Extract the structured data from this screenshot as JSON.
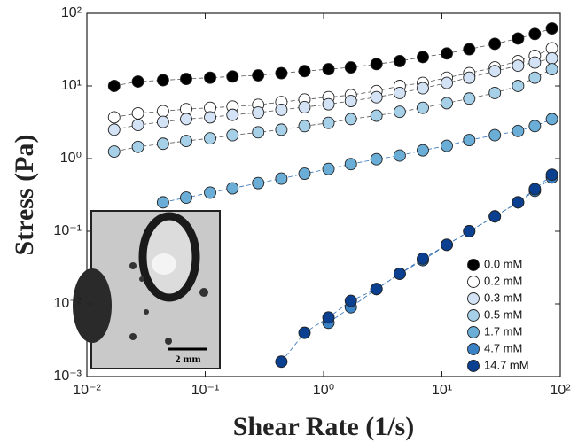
{
  "chart_data": {
    "type": "scatter",
    "x_label": "Shear Rate (1/s)",
    "y_label": "Stress (Pa)",
    "log_x": true,
    "log_y": true,
    "xlim": [
      0.01,
      100
    ],
    "ylim": [
      0.001,
      100
    ],
    "xticks": [
      {
        "value": 0.01,
        "label": "10⁻²"
      },
      {
        "value": 0.1,
        "label": "10⁻¹"
      },
      {
        "value": 1,
        "label": "10⁰"
      },
      {
        "value": 10,
        "label": "10¹"
      },
      {
        "value": 100,
        "label": "10²"
      }
    ],
    "yticks": [
      {
        "value": 0.001,
        "label": "10⁻³"
      },
      {
        "value": 0.01,
        "label": "10⁻²"
      },
      {
        "value": 0.1,
        "label": "10⁻¹"
      },
      {
        "value": 1,
        "label": "10⁰"
      },
      {
        "value": 10,
        "label": "10¹"
      },
      {
        "value": 100,
        "label": "10²"
      }
    ],
    "legend": "lower right",
    "fit_lines": true,
    "x": [
      0.017,
      0.027,
      0.044,
      0.069,
      0.11,
      0.17,
      0.28,
      0.44,
      0.69,
      1.1,
      1.7,
      2.8,
      4.4,
      6.9,
      11,
      17,
      28,
      44,
      61,
      85
    ],
    "series": [
      {
        "name": "0.0 mM",
        "color": "#000000",
        "values": [
          10,
          11.5,
          12,
          12.5,
          13,
          13.5,
          14,
          15,
          16,
          17,
          18,
          20,
          22,
          25,
          28,
          32,
          38,
          45,
          52,
          62
        ]
      },
      {
        "name": "0.2 mM",
        "color": "#ffffff",
        "values": [
          3.7,
          4.2,
          4.5,
          4.8,
          5,
          5.2,
          5.5,
          6,
          6.5,
          7,
          7.5,
          8.5,
          10,
          11,
          13,
          15,
          18,
          22,
          26,
          33
        ]
      },
      {
        "name": "0.3 mM",
        "color": "#d3e2f4",
        "values": [
          2.5,
          2.9,
          3.2,
          3.5,
          3.7,
          4,
          4.3,
          4.7,
          5.1,
          5.6,
          6.2,
          7,
          8,
          9.3,
          11,
          13,
          16,
          19,
          21,
          24
        ]
      },
      {
        "name": "0.5 mM",
        "color": "#a6d0e8",
        "values": [
          1.25,
          1.45,
          1.6,
          1.75,
          1.9,
          2.1,
          2.3,
          2.5,
          2.8,
          3.1,
          3.5,
          3.9,
          4.4,
          5,
          5.8,
          6.7,
          8,
          10,
          13,
          17
        ]
      },
      {
        "name": "1.7 mM",
        "color": "#6aaed8",
        "values": [
          null,
          null,
          0.25,
          0.29,
          0.34,
          0.39,
          0.46,
          0.53,
          0.62,
          0.72,
          0.84,
          0.98,
          1.1,
          1.3,
          1.5,
          1.8,
          2.1,
          2.4,
          2.8,
          3.5
        ]
      },
      {
        "name": "4.7 mM",
        "color": "#3a82c4",
        "values": [
          null,
          null,
          null,
          null,
          null,
          null,
          null,
          null,
          null,
          0.0055,
          0.009,
          0.016,
          0.026,
          0.04,
          0.065,
          0.1,
          0.16,
          0.25,
          0.36,
          0.55
        ]
      },
      {
        "name": "14.7 mM",
        "color": "#0b3f8f",
        "values": [
          null,
          null,
          null,
          null,
          null,
          null,
          null,
          0.0016,
          0.004,
          0.0065,
          0.011,
          0.016,
          0.026,
          0.042,
          0.065,
          0.1,
          0.16,
          0.25,
          0.38,
          0.6
        ]
      }
    ],
    "inset_scale_label": "2 mm"
  }
}
